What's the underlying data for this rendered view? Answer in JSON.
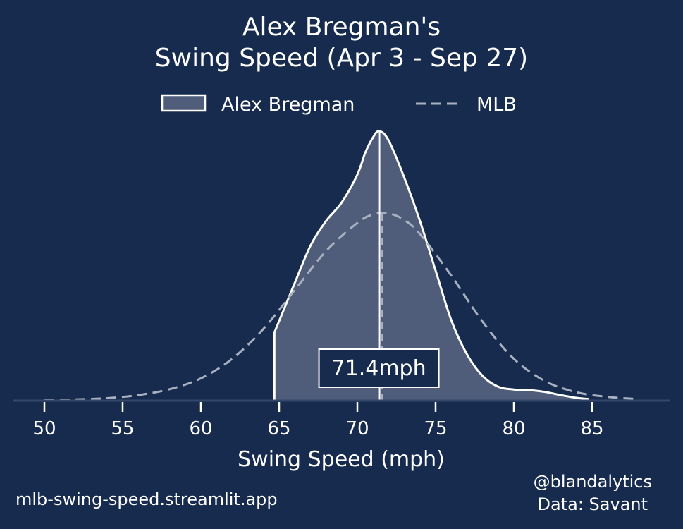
{
  "chart_data": {
    "type": "area",
    "title_line1": "Alex Bregman's",
    "title_line2": "Swing Speed (Apr 3 - Sep 27)",
    "xlabel": "Swing Speed (mph)",
    "ylabel": "",
    "xlim": [
      48,
      90
    ],
    "xticks": [
      50,
      55,
      60,
      65,
      70,
      75,
      80,
      85
    ],
    "legend": {
      "placement": "top-center"
    },
    "grid": false,
    "series": [
      {
        "name": "Alex Bregman",
        "style": "filled-solid",
        "x": [
          64.7,
          66,
          67,
          68,
          69,
          70,
          70.5,
          71,
          71.4,
          72,
          73,
          74,
          75,
          76,
          77,
          78,
          79,
          80,
          81,
          82,
          83,
          84,
          84.8
        ],
        "y": [
          0.022,
          0.038,
          0.05,
          0.058,
          0.064,
          0.073,
          0.08,
          0.085,
          0.087,
          0.084,
          0.072,
          0.058,
          0.042,
          0.026,
          0.015,
          0.008,
          0.0045,
          0.0036,
          0.0034,
          0.0028,
          0.0018,
          0.0009,
          0.0005
        ]
      },
      {
        "name": "MLB",
        "style": "dashed",
        "x": [
          50,
          52,
          54,
          56,
          58,
          60,
          62,
          64,
          66,
          68,
          70,
          71,
          72,
          73,
          74,
          76,
          78,
          80,
          82,
          84,
          86,
          88
        ],
        "y": [
          0.0002,
          0.0004,
          0.0008,
          0.0018,
          0.0037,
          0.0072,
          0.0135,
          0.0232,
          0.0357,
          0.0483,
          0.0574,
          0.0601,
          0.0605,
          0.0583,
          0.0538,
          0.0404,
          0.0255,
          0.0135,
          0.0063,
          0.0027,
          0.0012,
          0.0005
        ]
      }
    ],
    "median_lines": [
      {
        "name": "Alex Bregman median",
        "x": 71.4,
        "y_top": 0.087
      },
      {
        "name": "MLB median",
        "x": 71.6,
        "y_top": 0.0605
      }
    ],
    "annotation": {
      "text": "71.4mph",
      "x": 71.4
    },
    "colors": {
      "background": "#162b4d",
      "fill": "#4f5c7a",
      "line": "#ffffff",
      "mlb_line": "#a9b0bf",
      "axis": "#33476b"
    }
  },
  "footer": {
    "site": "mlb-swing-speed.streamlit.app",
    "handle": "@blandalytics",
    "source": "Data: Savant"
  }
}
